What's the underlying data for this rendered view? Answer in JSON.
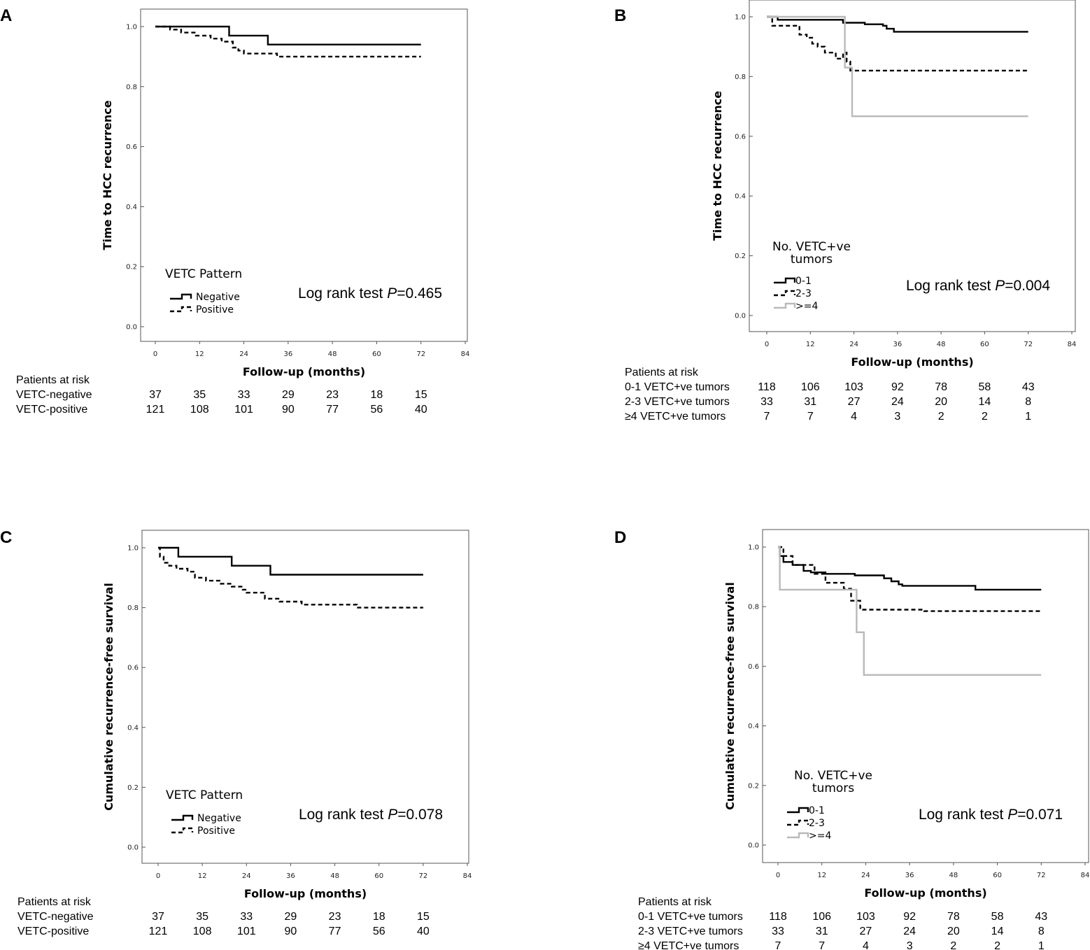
{
  "chart_data": [
    {
      "panel": "A",
      "type": "line",
      "xlabel": "Follow-up (months)",
      "ylabel": "Time to HCC recurrence",
      "xticks": [
        0,
        12,
        24,
        36,
        48,
        60,
        72,
        84
      ],
      "yticks": [
        "0.0",
        "0.2",
        "0.4",
        "0.6",
        "0.8",
        "1.0"
      ],
      "xlim": [
        0,
        84
      ],
      "ylim": [
        0,
        1
      ],
      "legend_title": [
        "VETC Pattern"
      ],
      "logrank_label": "Log rank test ",
      "p_symbol": "P",
      "p_value": "=0.465",
      "series": [
        {
          "name": "Negative",
          "style": "solid",
          "color": "#000000",
          "x": [
            0,
            20,
            20,
            30.5,
            30.5,
            72
          ],
          "y": [
            1.0,
            1.0,
            0.97,
            0.97,
            0.94,
            0.94
          ]
        },
        {
          "name": "Positive",
          "style": "dashed",
          "color": "#000000",
          "x": [
            0,
            4,
            4,
            7,
            7,
            11,
            11,
            15,
            15,
            18,
            18,
            21,
            21,
            22.5,
            22.5,
            24,
            24,
            33,
            33,
            72
          ],
          "y": [
            1.0,
            1.0,
            0.99,
            0.99,
            0.98,
            0.98,
            0.97,
            0.97,
            0.96,
            0.96,
            0.95,
            0.95,
            0.93,
            0.93,
            0.92,
            0.92,
            0.91,
            0.91,
            0.9,
            0.9
          ]
        }
      ],
      "risk_table": {
        "title": "Patients at risk",
        "rows": [
          {
            "label": "VETC-negative",
            "values": [
              "37",
              "35",
              "33",
              "29",
              "23",
              "18",
              "15"
            ]
          },
          {
            "label": "VETC-positive",
            "values": [
              "121",
              "108",
              "101",
              "90",
              "77",
              "56",
              "40"
            ]
          }
        ]
      }
    },
    {
      "panel": "B",
      "type": "line",
      "xlabel": "Follow-up (months)",
      "ylabel": "Time to HCC recurrence",
      "xticks": [
        0,
        12,
        24,
        36,
        48,
        60,
        72,
        84
      ],
      "yticks": [
        "0.0",
        "0.2",
        "0.4",
        "0.6",
        "0.8",
        "1.0"
      ],
      "xlim": [
        0,
        84
      ],
      "ylim": [
        0,
        1
      ],
      "legend_title": [
        "No. VETC+ve",
        "tumors"
      ],
      "logrank_label": "Log rank test ",
      "p_symbol": "P",
      "p_value": "=0.004",
      "series": [
        {
          "name": "0-1",
          "style": "solid",
          "color": "#000000",
          "x": [
            0,
            3,
            3,
            21,
            21,
            27,
            27,
            32,
            32,
            33,
            33,
            35,
            35,
            72
          ],
          "y": [
            1.0,
            1.0,
            0.99,
            0.99,
            0.98,
            0.98,
            0.975,
            0.975,
            0.97,
            0.97,
            0.96,
            0.96,
            0.95,
            0.95
          ]
        },
        {
          "name": "2-3",
          "style": "dashed",
          "color": "#000000",
          "x": [
            0,
            1.5,
            1.5,
            9,
            9,
            11,
            11,
            12.5,
            12.5,
            14,
            14,
            16,
            16,
            19,
            19,
            21,
            21,
            22,
            22,
            23,
            23,
            72
          ],
          "y": [
            1.0,
            1.0,
            0.97,
            0.97,
            0.94,
            0.94,
            0.93,
            0.93,
            0.91,
            0.91,
            0.9,
            0.9,
            0.88,
            0.88,
            0.86,
            0.86,
            0.88,
            0.88,
            0.85,
            0.85,
            0.82,
            0.82
          ]
        },
        {
          "name": ">=4",
          "style": "solid",
          "color": "#b9b9b9",
          "x": [
            0,
            21.5,
            21.5,
            23.5,
            23.5,
            72
          ],
          "y": [
            1.0,
            1.0,
            0.83,
            0.83,
            0.667,
            0.667
          ]
        }
      ],
      "risk_table": {
        "title": "Patients at risk",
        "rows": [
          {
            "label": "0-1 VETC+ve tumors",
            "values": [
              "118",
              "106",
              "103",
              "92",
              "78",
              "58",
              "43"
            ]
          },
          {
            "label": "2-3 VETC+ve tumors",
            "values": [
              "33",
              "31",
              "27",
              "24",
              "20",
              "14",
              "8"
            ]
          },
          {
            "label": "≥4 VETC+ve tumors",
            "values": [
              "7",
              "7",
              "4",
              "3",
              "2",
              "2",
              "1"
            ]
          }
        ]
      }
    },
    {
      "panel": "C",
      "type": "line",
      "xlabel": "Follow-up (months)",
      "ylabel": "Cumulative recurrence-free survival",
      "xticks": [
        0,
        12,
        24,
        36,
        48,
        60,
        72,
        84
      ],
      "yticks": [
        "0.0",
        "0.2",
        "0.4",
        "0.6",
        "0.8",
        "1.0"
      ],
      "xlim": [
        0,
        84
      ],
      "ylim": [
        0,
        1
      ],
      "legend_title": [
        "VETC Pattern"
      ],
      "logrank_label": "Log rank test ",
      "p_symbol": "P",
      "p_value": "=0.078",
      "series": [
        {
          "name": "Negative",
          "style": "solid",
          "color": "#000000",
          "x": [
            0,
            5.5,
            5.5,
            20,
            20,
            30.5,
            30.5,
            72
          ],
          "y": [
            1.0,
            1.0,
            0.97,
            0.97,
            0.94,
            0.94,
            0.91,
            0.91
          ]
        },
        {
          "name": "Positive",
          "style": "dashed",
          "color": "#000000",
          "x": [
            0,
            0.5,
            0.5,
            1.5,
            1.5,
            3,
            3,
            5,
            5,
            8,
            8,
            10,
            10,
            13,
            13,
            17,
            17,
            20,
            20,
            23,
            23,
            24,
            24,
            29,
            29,
            33,
            33,
            39,
            39,
            54,
            54,
            72
          ],
          "y": [
            1.0,
            1.0,
            0.97,
            0.97,
            0.95,
            0.95,
            0.94,
            0.94,
            0.93,
            0.93,
            0.92,
            0.92,
            0.9,
            0.9,
            0.89,
            0.89,
            0.88,
            0.88,
            0.87,
            0.87,
            0.86,
            0.86,
            0.85,
            0.85,
            0.83,
            0.83,
            0.82,
            0.82,
            0.81,
            0.81,
            0.8,
            0.8
          ]
        }
      ],
      "risk_table": {
        "title": "Patients at risk",
        "rows": [
          {
            "label": "VETC-negative",
            "values": [
              "37",
              "35",
              "33",
              "29",
              "23",
              "18",
              "15"
            ]
          },
          {
            "label": "VETC-positive",
            "values": [
              "121",
              "108",
              "101",
              "90",
              "77",
              "56",
              "40"
            ]
          }
        ]
      }
    },
    {
      "panel": "D",
      "type": "line",
      "xlabel": "Follow-up (months)",
      "ylabel": "Cumulative recurrence-free survival",
      "xticks": [
        0,
        12,
        24,
        36,
        48,
        60,
        72,
        84
      ],
      "yticks": [
        "0.0",
        "0.2",
        "0.4",
        "0.6",
        "0.8",
        "1.0"
      ],
      "xlim": [
        0,
        84
      ],
      "ylim": [
        0,
        1
      ],
      "legend_title": [
        "No. VETC+ve",
        "tumors"
      ],
      "logrank_label": "Log rank test ",
      "p_symbol": "P",
      "p_value": "=0.071",
      "series": [
        {
          "name": "0-1",
          "style": "solid",
          "color": "#000000",
          "x": [
            0,
            0.5,
            0.5,
            1.5,
            1.5,
            4,
            4,
            7,
            7,
            9,
            9,
            13,
            13,
            21,
            21,
            29,
            29,
            31,
            31,
            33,
            33,
            34,
            34,
            54,
            54,
            72
          ],
          "y": [
            1.0,
            1.0,
            0.97,
            0.97,
            0.95,
            0.95,
            0.94,
            0.94,
            0.92,
            0.92,
            0.915,
            0.915,
            0.91,
            0.91,
            0.905,
            0.905,
            0.895,
            0.895,
            0.885,
            0.885,
            0.875,
            0.875,
            0.87,
            0.87,
            0.857,
            0.857
          ]
        },
        {
          "name": "2-3",
          "style": "dashed",
          "color": "#000000",
          "x": [
            0,
            1.5,
            1.5,
            4,
            4,
            10,
            10,
            13,
            13,
            18,
            18,
            20,
            20,
            22.5,
            22.5,
            40,
            40,
            72
          ],
          "y": [
            1.0,
            1.0,
            0.97,
            0.97,
            0.94,
            0.94,
            0.91,
            0.91,
            0.88,
            0.88,
            0.86,
            0.86,
            0.82,
            0.82,
            0.79,
            0.79,
            0.785,
            0.785
          ]
        },
        {
          "name": ">=4",
          "style": "solid",
          "color": "#b9b9b9",
          "x": [
            0,
            0.5,
            0.5,
            21.5,
            21.5,
            23.5,
            23.5,
            72
          ],
          "y": [
            1.0,
            1.0,
            0.857,
            0.857,
            0.714,
            0.714,
            0.571,
            0.571
          ]
        }
      ],
      "risk_table": {
        "title": "Patients at risk",
        "rows": [
          {
            "label": "0-1 VETC+ve tumors",
            "values": [
              "118",
              "106",
              "103",
              "92",
              "78",
              "58",
              "43"
            ]
          },
          {
            "label": "2-3 VETC+ve tumors",
            "values": [
              "33",
              "31",
              "27",
              "24",
              "20",
              "14",
              "8"
            ]
          },
          {
            "label": "≥4 VETC+ve tumors",
            "values": [
              "7",
              "7",
              "4",
              "3",
              "2",
              "2",
              "1"
            ]
          }
        ]
      }
    }
  ]
}
